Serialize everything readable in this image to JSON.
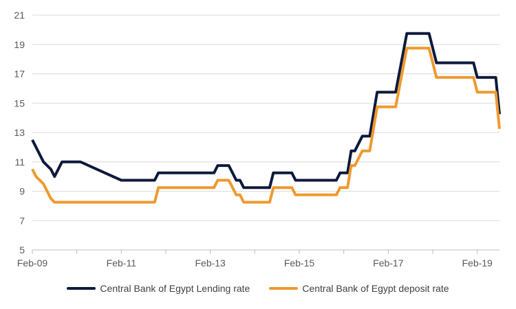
{
  "chart_data": {
    "type": "line",
    "title": "",
    "xlabel": "",
    "ylabel": "",
    "ylim": [
      5,
      21
    ],
    "yticks": [
      5,
      7,
      9,
      11,
      13,
      15,
      17,
      19,
      21
    ],
    "xlim": [
      "2009-02",
      "2019-08"
    ],
    "xticks": [
      "2009-02",
      "2011-02",
      "2013-02",
      "2015-02",
      "2017-02",
      "2019-02"
    ],
    "xtick_labels": [
      "Feb-09",
      "Feb-11",
      "Feb-13",
      "Feb-15",
      "Feb-17",
      "Feb-19"
    ],
    "grid": "horizontal",
    "legend_position": "bottom",
    "series": [
      {
        "name": "Central Bank of Egypt Lending rate",
        "color": "#0e1a3c",
        "points": [
          [
            "2009-02",
            12.5
          ],
          [
            "2009-03",
            12.0
          ],
          [
            "2009-05",
            11.0
          ],
          [
            "2009-07",
            10.5
          ],
          [
            "2009-08",
            10.0
          ],
          [
            "2009-10",
            11.0
          ],
          [
            "2010-03",
            11.0
          ],
          [
            "2011-02",
            9.75
          ],
          [
            "2011-11",
            9.75
          ],
          [
            "2011-12",
            10.25
          ],
          [
            "2013-03",
            10.25
          ],
          [
            "2013-04",
            10.75
          ],
          [
            "2013-07",
            10.75
          ],
          [
            "2013-09",
            9.75
          ],
          [
            "2013-10",
            9.75
          ],
          [
            "2013-11",
            9.25
          ],
          [
            "2014-06",
            9.25
          ],
          [
            "2014-07",
            10.25
          ],
          [
            "2014-12",
            10.25
          ],
          [
            "2015-01",
            9.75
          ],
          [
            "2015-12",
            9.75
          ],
          [
            "2016-01",
            10.25
          ],
          [
            "2016-03",
            10.25
          ],
          [
            "2016-04",
            11.75
          ],
          [
            "2016-05",
            11.75
          ],
          [
            "2016-07",
            12.75
          ],
          [
            "2016-09",
            12.75
          ],
          [
            "2016-11",
            15.75
          ],
          [
            "2017-04",
            15.75
          ],
          [
            "2017-07",
            19.75
          ],
          [
            "2018-01",
            19.75
          ],
          [
            "2018-03",
            17.75
          ],
          [
            "2019-01",
            17.75
          ],
          [
            "2019-02",
            16.75
          ],
          [
            "2019-07",
            16.75
          ],
          [
            "2019-08",
            14.25
          ]
        ]
      },
      {
        "name": "Central Bank of Egypt deposit rate",
        "color": "#f0992f",
        "points": [
          [
            "2009-02",
            10.5
          ],
          [
            "2009-03",
            10.0
          ],
          [
            "2009-05",
            9.5
          ],
          [
            "2009-07",
            8.5
          ],
          [
            "2009-08",
            8.25
          ],
          [
            "2011-11",
            8.25
          ],
          [
            "2011-12",
            9.25
          ],
          [
            "2013-03",
            9.25
          ],
          [
            "2013-04",
            9.75
          ],
          [
            "2013-07",
            9.75
          ],
          [
            "2013-09",
            8.75
          ],
          [
            "2013-10",
            8.75
          ],
          [
            "2013-11",
            8.25
          ],
          [
            "2014-06",
            8.25
          ],
          [
            "2014-07",
            9.25
          ],
          [
            "2014-12",
            9.25
          ],
          [
            "2015-01",
            8.75
          ],
          [
            "2015-12",
            8.75
          ],
          [
            "2016-01",
            9.25
          ],
          [
            "2016-03",
            9.25
          ],
          [
            "2016-04",
            10.75
          ],
          [
            "2016-05",
            10.75
          ],
          [
            "2016-07",
            11.75
          ],
          [
            "2016-09",
            11.75
          ],
          [
            "2016-11",
            14.75
          ],
          [
            "2017-04",
            14.75
          ],
          [
            "2017-07",
            18.75
          ],
          [
            "2018-01",
            18.75
          ],
          [
            "2018-03",
            16.75
          ],
          [
            "2019-01",
            16.75
          ],
          [
            "2019-02",
            15.75
          ],
          [
            "2019-07",
            15.75
          ],
          [
            "2019-08",
            13.25
          ]
        ]
      }
    ]
  }
}
